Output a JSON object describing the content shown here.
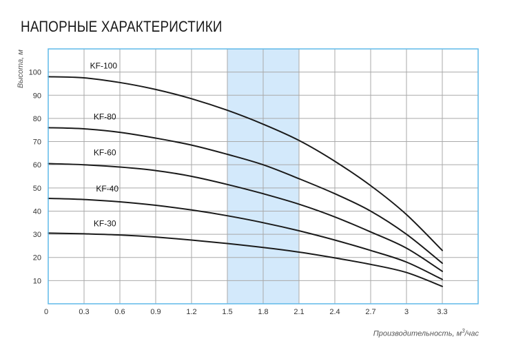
{
  "chart_data": {
    "type": "line",
    "title": "НАПОРНЫЕ ХАРАКТЕРИСТИКИ",
    "ylabel": "Высота, м",
    "xlabel_prefix": "Производительность, м",
    "xlabel_sup": "3",
    "xlabel_suffix": "/час",
    "xlim": [
      0,
      3.6
    ],
    "ylim": [
      0,
      110
    ],
    "grid": true,
    "x_ticks": [
      "0",
      "0.3",
      "0.6",
      "0.9",
      "1.2",
      "1.5",
      "1.8",
      "2.1",
      "2.4",
      "2.7",
      "3",
      "3.3"
    ],
    "x_tick_values": [
      0,
      0.3,
      0.6,
      0.9,
      1.2,
      1.5,
      1.8,
      2.1,
      2.4,
      2.7,
      3.0,
      3.3
    ],
    "y_ticks": [
      "10",
      "20",
      "30",
      "40",
      "50",
      "60",
      "70",
      "80",
      "90",
      "100"
    ],
    "y_tick_values": [
      10,
      20,
      30,
      40,
      50,
      60,
      70,
      80,
      90,
      100
    ],
    "highlight_x_range": [
      1.5,
      2.1
    ],
    "highlight_color": "#d3e9fb",
    "frame_color": "#5fb8e8",
    "grid_color": "#a9a9a9",
    "line_color": "#1a1a1a",
    "series": [
      {
        "name": "KF-100",
        "label_at": [
          0.35,
          101.5
        ],
        "x": [
          0,
          0.3,
          0.6,
          0.9,
          1.2,
          1.5,
          1.8,
          2.1,
          2.4,
          2.7,
          3.0,
          3.3
        ],
        "y": [
          98,
          97.5,
          95.5,
          92.5,
          88.5,
          83.5,
          77.5,
          70.5,
          61.5,
          51,
          38.5,
          23
        ]
      },
      {
        "name": "KF-80",
        "label_at": [
          0.38,
          79.5
        ],
        "x": [
          0,
          0.3,
          0.6,
          0.9,
          1.2,
          1.5,
          1.8,
          2.1,
          2.4,
          2.7,
          3.0,
          3.3
        ],
        "y": [
          76,
          75.5,
          74,
          71.5,
          68.5,
          64.5,
          60,
          54,
          47.5,
          40,
          30,
          17.5
        ]
      },
      {
        "name": "KF-60",
        "label_at": [
          0.38,
          64
        ],
        "x": [
          0,
          0.3,
          0.6,
          0.9,
          1.2,
          1.5,
          1.8,
          2.1,
          2.4,
          2.7,
          3.0,
          3.3
        ],
        "y": [
          60.5,
          60,
          59,
          57.5,
          55,
          51.5,
          47.5,
          43,
          37.5,
          31,
          24,
          14
        ]
      },
      {
        "name": "KF-40",
        "label_at": [
          0.4,
          48.5
        ],
        "x": [
          0,
          0.3,
          0.6,
          0.9,
          1.2,
          1.5,
          1.8,
          2.1,
          2.4,
          2.7,
          3.0,
          3.3
        ],
        "y": [
          45.5,
          45,
          44,
          42.5,
          40.5,
          38,
          35,
          31.5,
          27.5,
          23,
          18,
          10.5
        ]
      },
      {
        "name": "KF-30",
        "label_at": [
          0.38,
          33.5
        ],
        "x": [
          0,
          0.3,
          0.6,
          0.9,
          1.2,
          1.5,
          1.8,
          2.1,
          2.4,
          2.7,
          3.0,
          3.3
        ],
        "y": [
          30.5,
          30.2,
          29.7,
          28.8,
          27.5,
          26,
          24.3,
          22.3,
          19.8,
          17,
          13.5,
          7.5
        ]
      }
    ]
  }
}
